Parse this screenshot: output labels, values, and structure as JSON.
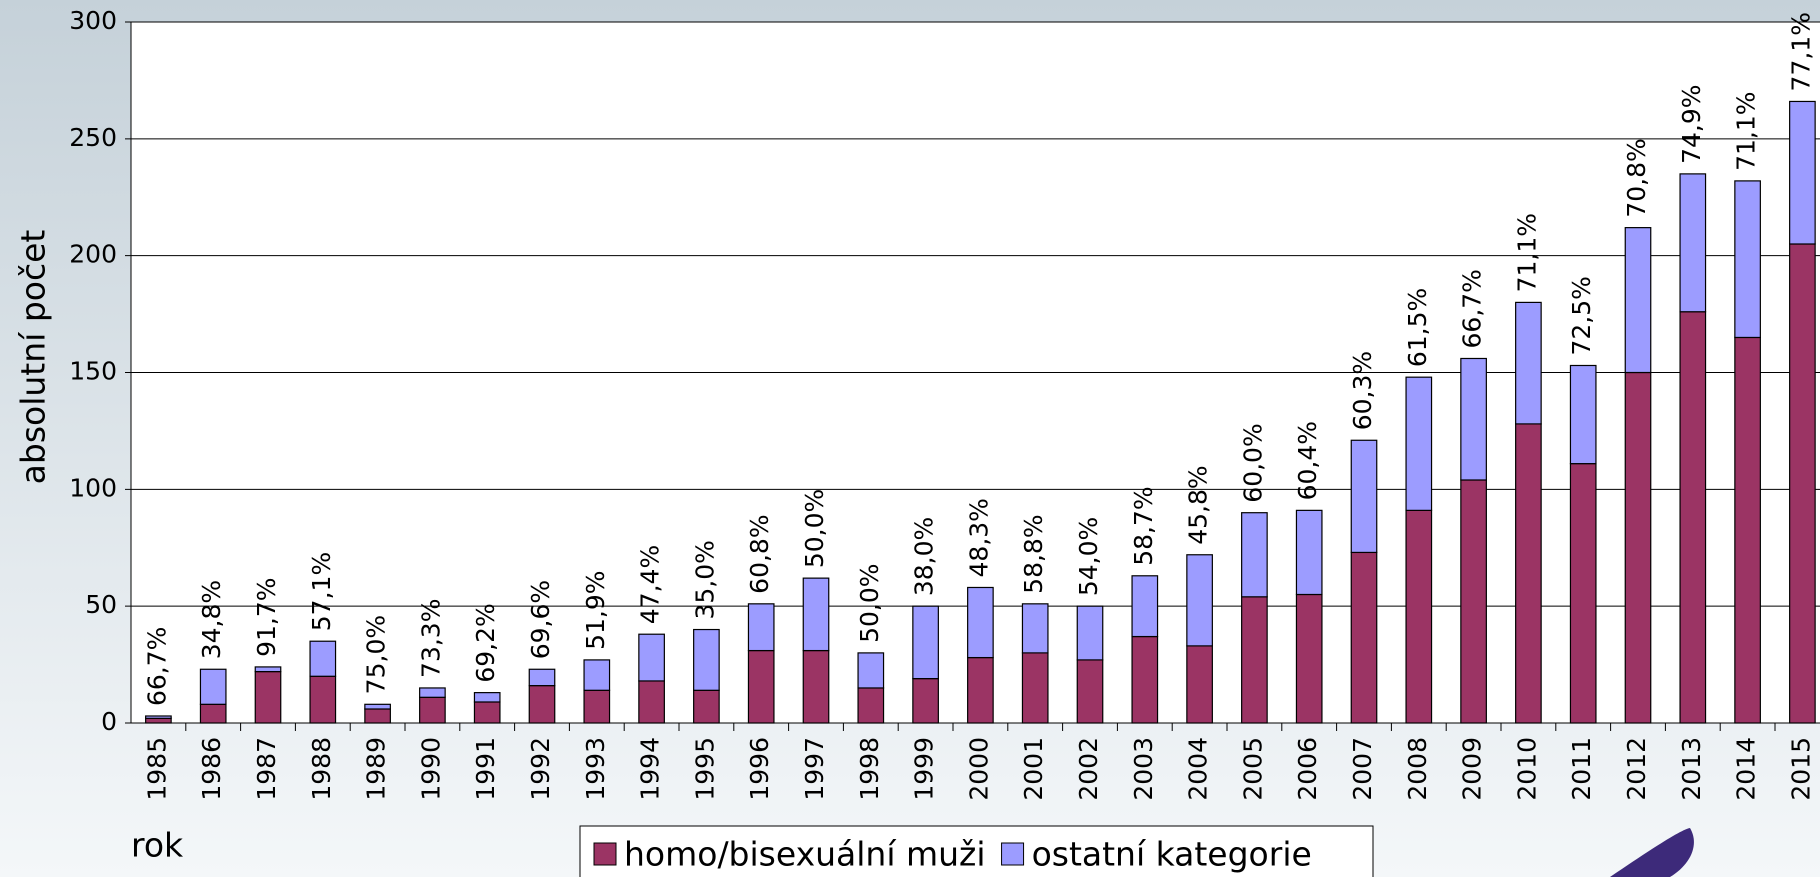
{
  "chart_data": {
    "type": "stacked_bar",
    "y_label": "absolutní počet",
    "x_label": "rok",
    "categories": [
      "1985",
      "1986",
      "1987",
      "1988",
      "1989",
      "1990",
      "1991",
      "1992",
      "1993",
      "1994",
      "1995",
      "1996",
      "1997",
      "1998",
      "1999",
      "2000",
      "2001",
      "2002",
      "2003",
      "2004",
      "2005",
      "2006",
      "2007",
      "2008",
      "2009",
      "2010",
      "2011",
      "2012",
      "2013",
      "2014",
      "2015"
    ],
    "series": [
      {
        "name": "homo/bisexuální muži",
        "color": "#9b3464",
        "values": [
          2,
          8,
          22,
          20,
          6,
          11,
          9,
          16,
          14,
          18,
          14,
          31,
          31,
          15,
          19,
          28,
          30,
          27,
          37,
          33,
          54,
          55,
          73,
          91,
          104,
          128,
          111,
          150,
          176,
          165,
          205
        ]
      },
      {
        "name": "ostatní kategorie",
        "color": "#9c9cff",
        "values": [
          1,
          15,
          2,
          15,
          2,
          4,
          4,
          7,
          13,
          20,
          26,
          20,
          31,
          15,
          31,
          30,
          21,
          23,
          26,
          39,
          36,
          36,
          48,
          57,
          52,
          52,
          42,
          62,
          59,
          67,
          61
        ]
      }
    ],
    "labels": [
      "66,7%",
      "34,8%",
      "91,7%",
      "57,1%",
      "75,0%",
      "73,3%",
      "69,2%",
      "69,6%",
      "51,9%",
      "47,4%",
      "35,0%",
      "60,8%",
      "50,0%",
      "50,0%",
      "38,0%",
      "48,3%",
      "58,8%",
      "54,0%",
      "58,7%",
      "45,8%",
      "60,0%",
      "60,4%",
      "60,3%",
      "61,5%",
      "66,7%",
      "71,1%",
      "72,5%",
      "70,8%",
      "74,9%",
      "71,1%",
      "77,1%"
    ],
    "ylim": [
      0,
      300
    ],
    "yticks": [
      0,
      50,
      100,
      150,
      200,
      250,
      300
    ],
    "grid": true,
    "legend": "bottom"
  }
}
